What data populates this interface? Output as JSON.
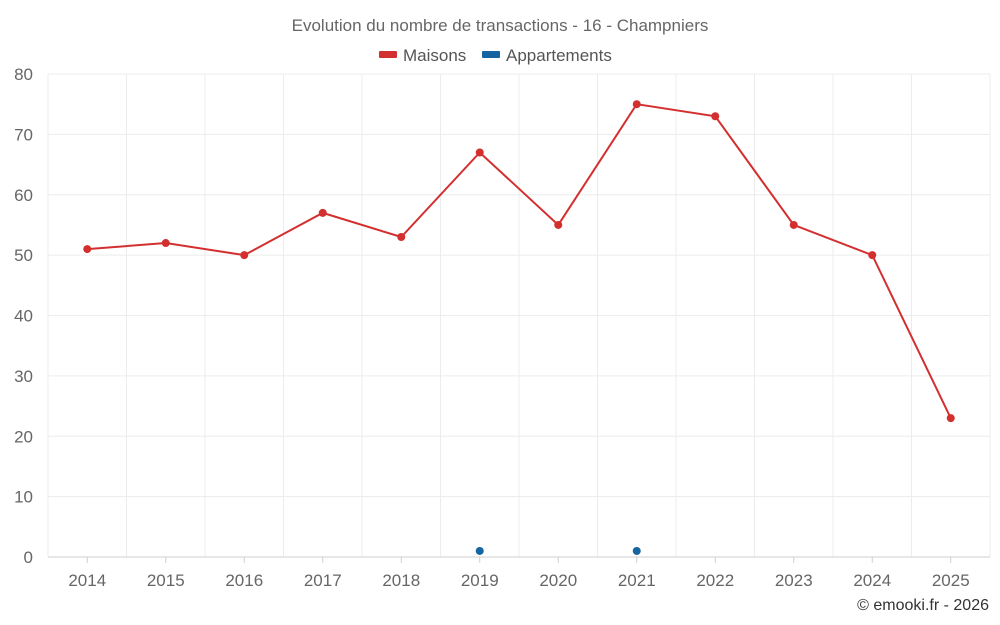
{
  "chart_data": {
    "type": "line",
    "title": "Evolution du nombre de transactions - 16 - Champniers",
    "x": [
      "2014",
      "2015",
      "2016",
      "2017",
      "2018",
      "2019",
      "2020",
      "2021",
      "2022",
      "2023",
      "2024",
      "2025"
    ],
    "series": [
      {
        "name": "Maisons",
        "color": "#d32f2f",
        "values": [
          51,
          52,
          50,
          57,
          53,
          67,
          55,
          75,
          73,
          55,
          50,
          23
        ]
      },
      {
        "name": "Appartements",
        "color": "#1565a0",
        "values": [
          null,
          null,
          null,
          null,
          null,
          1,
          null,
          1,
          null,
          null,
          null,
          null
        ]
      }
    ],
    "yticks": [
      0,
      10,
      20,
      30,
      40,
      50,
      60,
      70,
      80
    ],
    "ylim": [
      0,
      80
    ],
    "grid": true,
    "legend_position": "top-center"
  },
  "footer": {
    "credit": "© emooki.fr - 2026"
  }
}
